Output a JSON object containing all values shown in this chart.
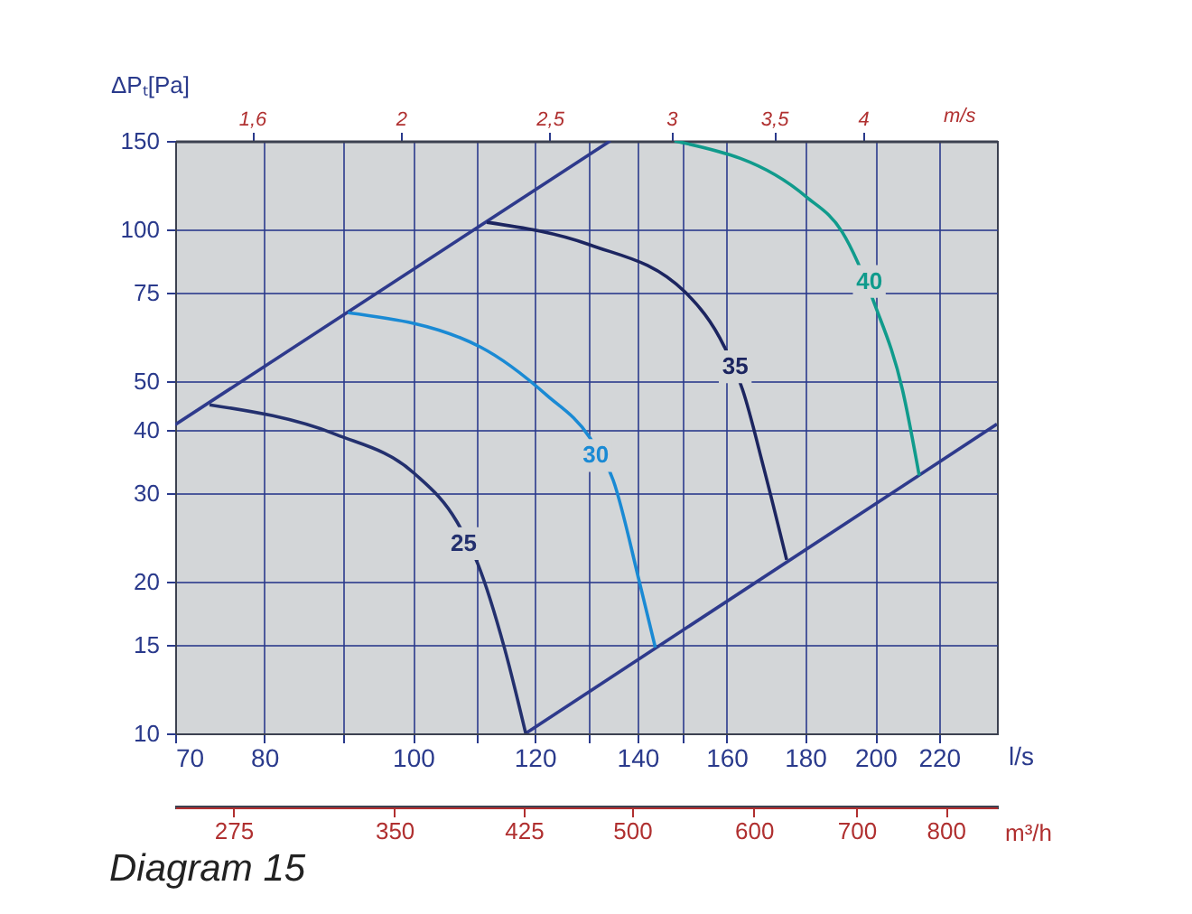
{
  "chart_data": {
    "type": "line",
    "xlabel": "l/s",
    "ylabel": "ΔPₜ[Pa]",
    "x2label": "m/s",
    "xlim": [
      70,
      240
    ],
    "ylim": [
      10,
      150
    ],
    "xticks": [
      70,
      80,
      {
        "value": 90,
        "label": null
      },
      100,
      {
        "value": 110,
        "label": null
      },
      120,
      {
        "value": 130,
        "label": null
      },
      140,
      {
        "value": 150,
        "label": null
      },
      160,
      180,
      200,
      220
    ],
    "yticks": [
      10,
      15,
      20,
      30,
      40,
      50,
      75,
      100,
      150
    ],
    "log": "xy",
    "grid": true,
    "marker": "none",
    "line_style": "solid",
    "series": [
      {
        "color": "#2e3a8c",
        "x": [
          70,
          134.4
        ],
        "values": [
          41.0,
          150
        ]
      },
      {
        "color": "#2e3a8c",
        "x": [
          118.4,
          240
        ],
        "values": [
          10,
          41.1
        ]
      },
      {
        "color": "#23306e",
        "x": [
          73.7,
          89.1,
          100.2,
          106.8,
          110.2,
          114.7,
          118.4
        ],
        "values": [
          44.9,
          39.2,
          32.8,
          26.3,
          21.7,
          14.75,
          10
        ]
      },
      {
        "color": "#1a8ad4",
        "x": [
          90.7,
          110.7,
          122.2,
          130.3,
          135.0,
          140.4,
          143.8
        ],
        "values": [
          68.4,
          58.4,
          46.9,
          38.7,
          31.8,
          20.0,
          14.8
        ]
      },
      {
        "color": "#1c2560",
        "x": [
          111.7,
          130.3,
          150.4,
          159.5,
          163.9,
          169.2,
          175.1
        ],
        "values": [
          103.4,
          93.3,
          75.1,
          58.5,
          48.1,
          33.6,
          22.1
        ]
      },
      {
        "color": "#109b8c",
        "x": [
          148.0,
          180.3,
          190.3,
          199.9,
          208.3,
          213.6
        ],
        "values": [
          150,
          116.2,
          98.9,
          70.8,
          48.1,
          32.5
        ]
      }
    ],
    "annotations": [
      {
        "text": "25",
        "x": 107.9,
        "y": 23.8
      },
      {
        "text": "30",
        "x": 131.5,
        "y": 35.6
      },
      {
        "text": "35",
        "x": 162.1,
        "y": 53.4
      },
      {
        "text": "40",
        "x": 198.2,
        "y": 78.9
      },
      "1,6",
      "2",
      "2,5",
      "3",
      "3,5",
      "4",
      "275",
      "350",
      "425",
      "500",
      "600",
      "700",
      "800",
      "m³/h",
      "Diagram 15"
    ]
  }
}
